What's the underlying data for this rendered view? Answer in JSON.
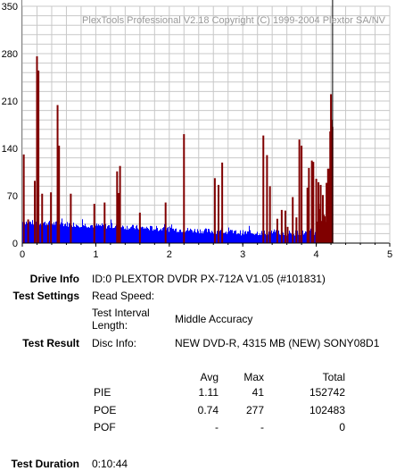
{
  "chart_data": {
    "type": "bar",
    "copyright": "PlexTools Professional V2.18 Copyright (C) 1999-2004 Plextor SA/NV",
    "x_ticks": [
      "0",
      "1",
      "2",
      "3",
      "4",
      "5"
    ],
    "y_ticks": [
      "0",
      "70",
      "140",
      "210",
      "280",
      "350"
    ],
    "xlim": [
      0,
      5
    ],
    "ylim": [
      0,
      350
    ],
    "grid": true,
    "end_marker_x": 4.21,
    "series": [
      {
        "color": "#800000",
        "points": [
          [
            0.02,
            131
          ],
          [
            0.08,
            35
          ],
          [
            0.17,
            92
          ],
          [
            0.2,
            276
          ],
          [
            0.22,
            255
          ],
          [
            0.27,
            73
          ],
          [
            0.35,
            27
          ],
          [
            0.39,
            75
          ],
          [
            0.48,
            204
          ],
          [
            0.5,
            144
          ],
          [
            0.66,
            73
          ],
          [
            0.98,
            58
          ],
          [
            1.12,
            60
          ],
          [
            1.29,
            106
          ],
          [
            1.31,
            74
          ],
          [
            1.33,
            114
          ],
          [
            1.6,
            45
          ],
          [
            1.95,
            60
          ],
          [
            2.2,
            161
          ],
          [
            2.62,
            96
          ],
          [
            2.67,
            86
          ],
          [
            2.72,
            119
          ],
          [
            3.28,
            159
          ],
          [
            3.33,
            130
          ],
          [
            3.37,
            84
          ],
          [
            3.47,
            36
          ],
          [
            3.53,
            49
          ],
          [
            3.58,
            48
          ],
          [
            3.61,
            24
          ],
          [
            3.68,
            68
          ],
          [
            3.73,
            38
          ],
          [
            3.77,
            153
          ],
          [
            3.8,
            144
          ],
          [
            3.88,
            82
          ],
          [
            3.9,
            111
          ],
          [
            3.94,
            122
          ],
          [
            3.96,
            120
          ],
          [
            4.0,
            95
          ],
          [
            4.03,
            90
          ],
          [
            4.06,
            86
          ],
          [
            4.09,
            71
          ],
          [
            4.14,
            89
          ],
          [
            4.16,
            110
          ],
          [
            4.18,
            110
          ],
          [
            4.19,
            165
          ],
          [
            4.2,
            220
          ],
          [
            4.21,
            182
          ],
          [
            4.22,
            172
          ]
        ]
      },
      {
        "color": "#0000ff",
        "level_start": 30,
        "level_end": 14,
        "noise": 8
      }
    ]
  },
  "info": {
    "drive_info_label": "Drive Info",
    "drive_info_value": "ID:0 PLEXTOR DVDR PX-712A V1.05 (#101831)",
    "test_settings_label": "Test Settings",
    "read_speed_label": "Read Speed:",
    "interval_label_1": "Test Interval",
    "interval_label_2": "Length:",
    "interval_value": "Middle Accuracy",
    "test_result_label": "Test Result",
    "disc_info_label": "Disc Info:",
    "disc_info_value": "NEW DVD-R, 4315 MB (NEW) SONY08D1",
    "col_avg": "Avg",
    "col_max": "Max",
    "col_total": "Total",
    "rows": [
      {
        "name": "PIE",
        "avg": "1.11",
        "max": "41",
        "total": "152742"
      },
      {
        "name": "POE",
        "avg": "0.74",
        "max": "277",
        "total": "102483"
      },
      {
        "name": "POF",
        "avg": "-",
        "max": "-",
        "total": "0"
      }
    ],
    "test_duration_label": "Test Duration",
    "test_duration_value": "0:10:44"
  }
}
